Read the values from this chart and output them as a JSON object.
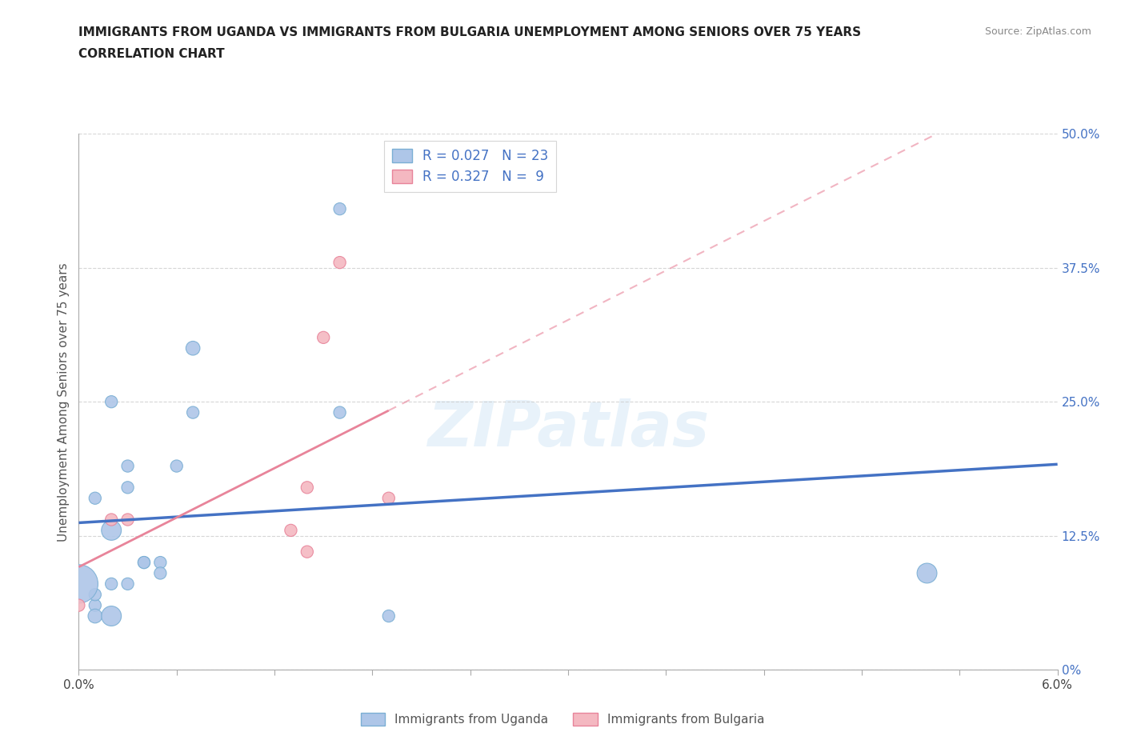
{
  "title_line1": "IMMIGRANTS FROM UGANDA VS IMMIGRANTS FROM BULGARIA UNEMPLOYMENT AMONG SENIORS OVER 75 YEARS",
  "title_line2": "CORRELATION CHART",
  "source": "Source: ZipAtlas.com",
  "ylabel": "Unemployment Among Seniors over 75 years",
  "xlim": [
    0.0,
    0.06
  ],
  "ylim": [
    0.0,
    0.5
  ],
  "xticks": [
    0.0,
    0.006,
    0.012,
    0.018,
    0.024,
    0.03,
    0.036,
    0.042,
    0.048,
    0.054,
    0.06
  ],
  "yticks": [
    0.0,
    0.125,
    0.25,
    0.375,
    0.5
  ],
  "ytick_labels": [
    "0%",
    "12.5%",
    "25.0%",
    "37.5%",
    "50.0%"
  ],
  "uganda_x": [
    0.003,
    0.006,
    0.004,
    0.005,
    0.007,
    0.002,
    0.001,
    0.002,
    0.003,
    0.004,
    0.001,
    0.002,
    0.001,
    0.001,
    0.002,
    0.003,
    0.005,
    0.007,
    0.016,
    0.016,
    0.019,
    0.0,
    0.052
  ],
  "uganda_y": [
    0.19,
    0.19,
    0.1,
    0.1,
    0.3,
    0.25,
    0.16,
    0.13,
    0.17,
    0.1,
    0.06,
    0.08,
    0.07,
    0.05,
    0.05,
    0.08,
    0.09,
    0.24,
    0.43,
    0.24,
    0.05,
    0.08,
    0.09
  ],
  "uganda_sizes": [
    30,
    30,
    30,
    30,
    40,
    30,
    30,
    80,
    30,
    30,
    30,
    30,
    30,
    40,
    80,
    30,
    30,
    30,
    30,
    30,
    30,
    300,
    80
  ],
  "bulgaria_x": [
    0.002,
    0.003,
    0.016,
    0.015,
    0.014,
    0.013,
    0.019,
    0.0,
    0.014
  ],
  "bulgaria_y": [
    0.14,
    0.14,
    0.38,
    0.31,
    0.17,
    0.13,
    0.16,
    0.06,
    0.11
  ],
  "bulgaria_sizes": [
    30,
    30,
    30,
    30,
    30,
    30,
    30,
    30,
    30
  ],
  "uganda_color": "#aec6e8",
  "bulgaria_color": "#f4b8c1",
  "uganda_edge_color": "#7bafd4",
  "bulgaria_edge_color": "#e8849a",
  "trendline_uganda_color": "#4472c4",
  "trendline_bulgaria_color": "#e8849a",
  "R_uganda": 0.027,
  "N_uganda": 23,
  "R_bulgaria": 0.327,
  "N_bulgaria": 9,
  "legend_label_uganda": "Immigrants from Uganda",
  "legend_label_bulgaria": "Immigrants from Bulgaria",
  "watermark": "ZIPatlas",
  "background_color": "#ffffff",
  "grid_color": "#cccccc"
}
